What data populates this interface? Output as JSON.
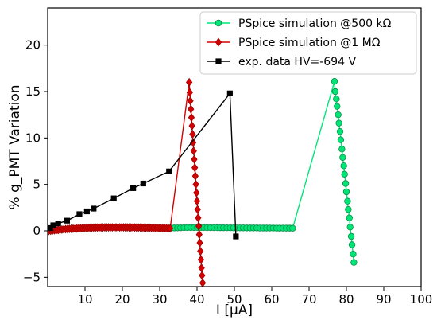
{
  "chart_data": {
    "type": "line",
    "xlabel": "I [μA]",
    "ylabel": "% g_PMT Variation",
    "xlim": [
      0,
      100
    ],
    "ylim": [
      -6,
      24
    ],
    "xticks": [
      10,
      20,
      30,
      40,
      50,
      60,
      70,
      80,
      90,
      100
    ],
    "yticks": [
      -5,
      0,
      5,
      10,
      15,
      20
    ],
    "xtick_labels": [
      "10",
      "20",
      "30",
      "40",
      "50",
      "60",
      "70",
      "80",
      "90",
      "100"
    ],
    "ytick_labels": [
      "−5",
      "0",
      "5",
      "10",
      "15",
      "20"
    ],
    "grid": false,
    "legend_position": "top-right",
    "series": [
      {
        "name": "PSpice simulation @500 kΩ",
        "color": "#00e676",
        "marker": "circle",
        "x": [
          33.0,
          33.9,
          34.8,
          35.6,
          36.5,
          37.4,
          38.3,
          39.2,
          40.1,
          40.9,
          41.8,
          42.7,
          43.6,
          44.5,
          45.4,
          46.2,
          47.1,
          48.0,
          48.9,
          49.8,
          50.7,
          51.5,
          52.4,
          53.3,
          54.2,
          55.1,
          56.0,
          56.8,
          57.7,
          58.6,
          59.5,
          60.4,
          61.3,
          62.1,
          63.0,
          63.9,
          64.8,
          65.6,
          76.8,
          77.0,
          77.3,
          77.5,
          77.8,
          78.0,
          78.3,
          78.5,
          78.8,
          79.0,
          79.3,
          79.5,
          79.8,
          80.0,
          80.3,
          80.5,
          80.8,
          81.0,
          81.3,
          81.5,
          81.8,
          82.0
        ],
        "y": [
          0.3,
          0.31,
          0.32,
          0.33,
          0.34,
          0.35,
          0.35,
          0.35,
          0.35,
          0.35,
          0.35,
          0.34,
          0.34,
          0.34,
          0.34,
          0.33,
          0.33,
          0.33,
          0.33,
          0.32,
          0.32,
          0.32,
          0.32,
          0.31,
          0.31,
          0.31,
          0.31,
          0.3,
          0.3,
          0.3,
          0.3,
          0.3,
          0.29,
          0.29,
          0.29,
          0.29,
          0.29,
          0.28,
          16.1,
          15.0,
          14.2,
          13.4,
          12.5,
          11.6,
          10.7,
          9.8,
          8.8,
          7.9,
          7.0,
          6.1,
          5.1,
          4.2,
          3.2,
          2.3,
          1.4,
          0.4,
          -0.6,
          -1.5,
          -2.5,
          -3.4
        ]
      },
      {
        "name": "PSpice simulation @1 MΩ",
        "color": "#d50000",
        "marker": "diamond",
        "x": [
          0.3,
          0.8,
          1.3,
          1.8,
          2.3,
          2.8,
          3.3,
          3.8,
          4.3,
          4.8,
          5.3,
          5.8,
          6.3,
          6.8,
          7.3,
          7.8,
          8.3,
          8.8,
          9.3,
          9.8,
          10.3,
          10.8,
          11.3,
          11.8,
          12.3,
          12.8,
          13.3,
          13.8,
          14.3,
          14.8,
          15.3,
          15.8,
          16.3,
          16.8,
          17.3,
          17.8,
          18.3,
          18.8,
          19.3,
          19.8,
          20.3,
          20.8,
          21.3,
          21.8,
          22.3,
          22.8,
          23.3,
          23.8,
          24.3,
          24.8,
          25.3,
          25.8,
          26.3,
          26.8,
          27.3,
          27.8,
          28.3,
          28.8,
          29.3,
          29.8,
          30.3,
          30.8,
          31.3,
          31.8,
          32.3,
          32.8,
          37.9,
          38.05,
          38.2,
          38.35,
          38.5,
          38.65,
          38.8,
          38.95,
          39.1,
          39.25,
          39.4,
          39.55,
          39.7,
          39.85,
          40.0,
          40.15,
          40.3,
          40.45,
          40.6,
          40.75,
          40.9,
          41.05,
          41.2,
          41.35,
          41.5
        ],
        "y": [
          0.0,
          0.02,
          0.04,
          0.06,
          0.08,
          0.1,
          0.12,
          0.14,
          0.16,
          0.18,
          0.19,
          0.21,
          0.22,
          0.24,
          0.25,
          0.26,
          0.27,
          0.28,
          0.29,
          0.3,
          0.31,
          0.32,
          0.33,
          0.33,
          0.34,
          0.35,
          0.35,
          0.36,
          0.36,
          0.36,
          0.37,
          0.37,
          0.37,
          0.37,
          0.37,
          0.37,
          0.37,
          0.37,
          0.37,
          0.37,
          0.37,
          0.37,
          0.37,
          0.36,
          0.36,
          0.36,
          0.36,
          0.35,
          0.35,
          0.35,
          0.34,
          0.34,
          0.33,
          0.33,
          0.33,
          0.32,
          0.32,
          0.31,
          0.31,
          0.3,
          0.3,
          0.29,
          0.29,
          0.28,
          0.28,
          0.27,
          16.0,
          14.9,
          14.0,
          13.1,
          12.2,
          11.3,
          10.4,
          9.5,
          8.6,
          7.7,
          6.8,
          5.9,
          5.0,
          4.1,
          3.2,
          2.3,
          1.4,
          0.5,
          -0.4,
          -1.3,
          -2.2,
          -3.1,
          -4.0,
          -4.8,
          -5.6
        ]
      },
      {
        "name": "exp. data HV=-694 V",
        "color": "#000000",
        "marker": "square",
        "x": [
          0.7,
          1.5,
          2.8,
          5.2,
          8.5,
          10.5,
          12.3,
          17.7,
          22.9,
          25.6,
          32.5,
          48.8,
          50.4
        ],
        "y": [
          0.3,
          0.6,
          0.8,
          1.1,
          1.8,
          2.1,
          2.4,
          3.5,
          4.6,
          5.1,
          6.4,
          14.8,
          -0.6
        ]
      }
    ]
  }
}
